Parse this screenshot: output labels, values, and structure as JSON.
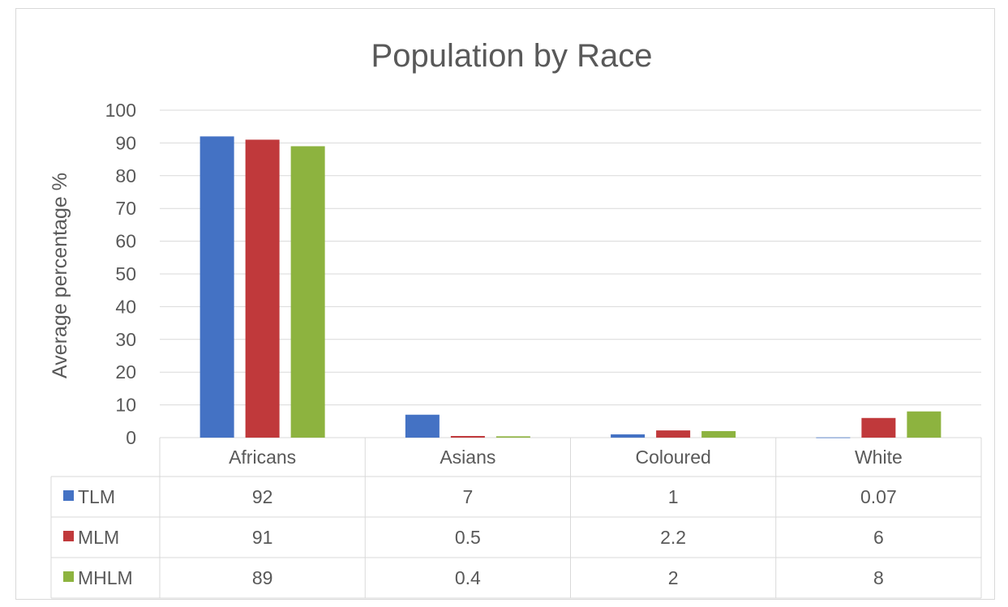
{
  "chart_data": {
    "type": "bar",
    "title": "Population by Race",
    "ylabel": "Average percentage %",
    "xlabel": "",
    "ylim": [
      0,
      100
    ],
    "yticks": [
      0,
      10,
      20,
      30,
      40,
      50,
      60,
      70,
      80,
      90,
      100
    ],
    "grid": true,
    "legend": "data-table",
    "categories": [
      "Africans",
      "Asians",
      "Coloured",
      "White"
    ],
    "series": [
      {
        "name": "TLM",
        "color": "#4472c4",
        "values": [
          92,
          7,
          1,
          0.07
        ],
        "labels": [
          "92",
          "7",
          "1",
          "0.07"
        ]
      },
      {
        "name": "MLM",
        "color": "#c0393b",
        "values": [
          91,
          0.5,
          2.2,
          6
        ],
        "labels": [
          "91",
          "0.5",
          "2.2",
          "6"
        ]
      },
      {
        "name": "MHLM",
        "color": "#8db33f",
        "values": [
          89,
          0.4,
          2,
          8
        ],
        "labels": [
          "89",
          "0.4",
          "2",
          "8"
        ]
      }
    ]
  }
}
